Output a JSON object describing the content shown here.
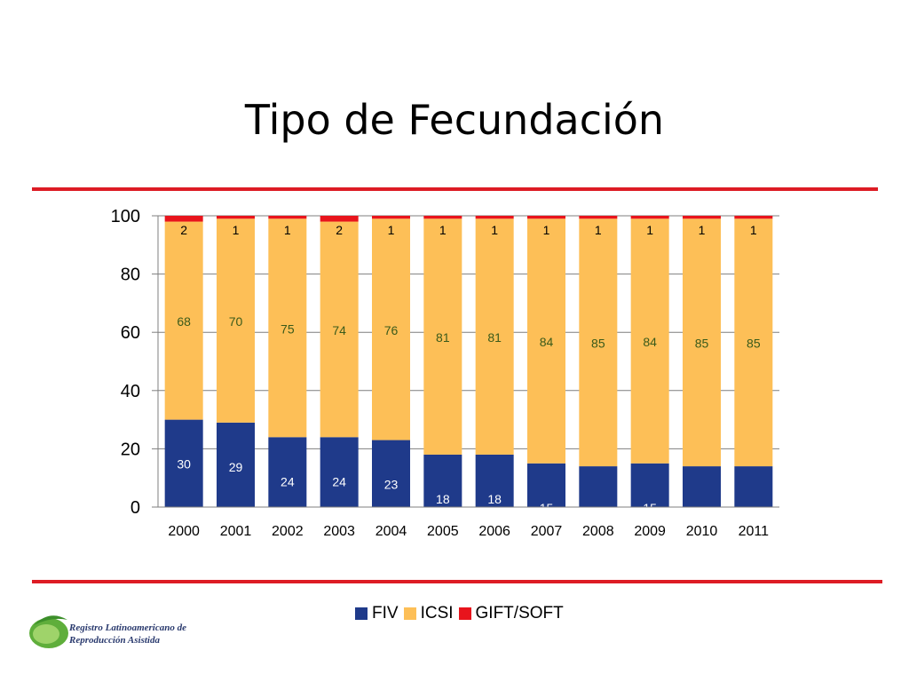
{
  "title": "Tipo de Fecundación",
  "colors": {
    "rule": "#dd1c24",
    "fiv": "#1f3a8a",
    "icsi": "#fdbf57",
    "gift": "#e8141c",
    "grid": "#7f7f7f",
    "icsi_label": "#3a5a1a",
    "gift_label": "#000000",
    "fiv_label": "#ffffff"
  },
  "logo": {
    "line1": "Registro Latinoamericano de",
    "line2": "Reproducción Asistida",
    "icon": "globe-leaf-icon"
  },
  "chart_data": {
    "type": "bar",
    "stacked": true,
    "categories": [
      "2000",
      "2001",
      "2002",
      "2003",
      "2004",
      "2005",
      "2006",
      "2007",
      "2008",
      "2009",
      "2010",
      "2011"
    ],
    "series": [
      {
        "name": "FIV",
        "color": "#1f3a8a",
        "values": [
          30,
          29,
          24,
          24,
          23,
          18,
          18,
          15,
          14,
          15,
          14,
          14
        ]
      },
      {
        "name": "ICSI",
        "color": "#fdbf57",
        "values": [
          68,
          70,
          75,
          74,
          76,
          81,
          81,
          84,
          85,
          84,
          85,
          85
        ]
      },
      {
        "name": "GIFT/SOFT",
        "color": "#e8141c",
        "values": [
          2,
          1,
          1,
          2,
          1,
          1,
          1,
          1,
          1,
          1,
          1,
          1
        ]
      }
    ],
    "yticks": [
      "0",
      "20",
      "40",
      "60",
      "80",
      "100"
    ],
    "ylim": [
      0,
      100
    ],
    "grid": true,
    "legend_position": "bottom"
  }
}
